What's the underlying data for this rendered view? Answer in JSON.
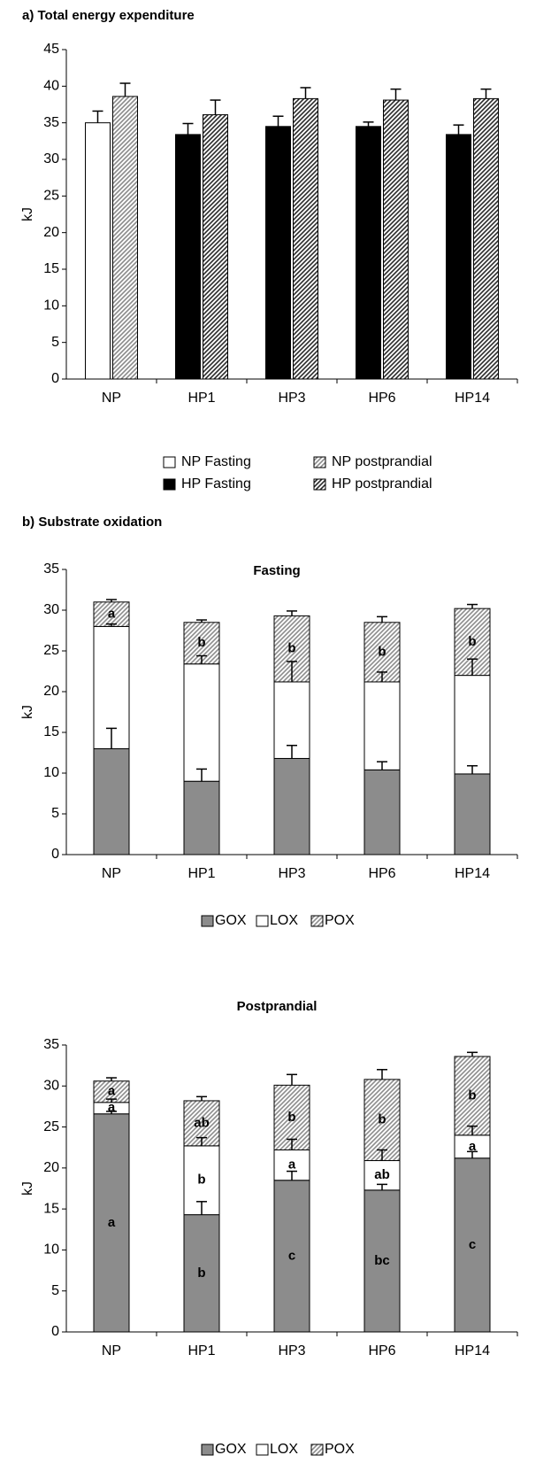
{
  "section_heading": "b) Substrate oxidation",
  "chart_data": [
    {
      "type": "bar",
      "title": "a) Total energy expenditure",
      "y_label": "kJ",
      "categories": [
        "NP",
        "HP1",
        "HP3",
        "HP6",
        "HP14"
      ],
      "ylim": [
        0,
        45
      ],
      "yticks": [
        0,
        5,
        10,
        15,
        20,
        25,
        30,
        35,
        40,
        45
      ],
      "series": [
        {
          "name": "NP Fasting",
          "color": "#ffffff",
          "values": [
            35,
            null,
            null,
            null,
            null
          ],
          "errors": [
            1.6,
            null,
            null,
            null,
            null
          ]
        },
        {
          "name": "NP postprandial",
          "color": "#8a8a8a",
          "pattern": "hatch",
          "values": [
            38.6,
            null,
            null,
            null,
            null
          ],
          "errors": [
            1.8,
            null,
            null,
            null,
            null
          ]
        },
        {
          "name": "HP Fasting",
          "color": "#000000",
          "values": [
            null,
            33.4,
            34.5,
            34.5,
            33.4
          ],
          "errors": [
            null,
            1.5,
            1.4,
            0.6,
            1.3
          ]
        },
        {
          "name": "HP postprandial",
          "color": "#2a2a2a",
          "pattern": "hatch",
          "values": [
            null,
            36.1,
            38.3,
            38.1,
            38.3
          ],
          "errors": [
            null,
            2,
            1.5,
            1.5,
            1.3
          ]
        }
      ]
    },
    {
      "type": "stacked_bar",
      "title": "Fasting",
      "y_label": "kJ",
      "categories": [
        "NP",
        "HP1",
        "HP3",
        "HP6",
        "HP14"
      ],
      "ylim": [
        0,
        35
      ],
      "yticks": [
        0,
        5,
        10,
        15,
        20,
        25,
        30,
        35
      ],
      "series": [
        {
          "name": "GOX",
          "color": "#8c8c8c",
          "values": [
            13,
            9,
            11.8,
            10.4,
            9.9
          ],
          "errors": [
            2.5,
            1.5,
            1.6,
            1,
            1
          ]
        },
        {
          "name": "LOX",
          "color": "#ffffff",
          "values": [
            15,
            14.4,
            9.4,
            10.8,
            12.1
          ],
          "errors": [
            0.3,
            1,
            2.5,
            1.2,
            2
          ]
        },
        {
          "name": "POX",
          "color": "#8c8c8c",
          "pattern": "hatch",
          "values": [
            3,
            5.1,
            8.1,
            7.3,
            8.2
          ],
          "errors": [
            0.3,
            0.3,
            0.6,
            0.7,
            0.5
          ],
          "labels": [
            "a",
            "b",
            "b",
            "b",
            "b"
          ]
        }
      ]
    },
    {
      "type": "stacked_bar",
      "title": "Postprandial",
      "y_label": "kJ",
      "categories": [
        "NP",
        "HP1",
        "HP3",
        "HP6",
        "HP14"
      ],
      "ylim": [
        0,
        35
      ],
      "yticks": [
        0,
        5,
        10,
        15,
        20,
        25,
        30,
        35
      ],
      "series": [
        {
          "name": "GOX",
          "color": "#8c8c8c",
          "values": [
            26.6,
            14.3,
            18.5,
            17.3,
            21.2
          ],
          "errors": [
            0.3,
            1.6,
            1.1,
            0.7,
            0.8
          ],
          "labels": [
            "a",
            "b",
            "c",
            "bc",
            "c"
          ]
        },
        {
          "name": "LOX",
          "color": "#ffffff",
          "values": [
            1.4,
            8.4,
            3.7,
            3.6,
            2.8
          ],
          "errors": [
            0.4,
            1,
            1.3,
            1.3,
            1.1
          ],
          "labels": [
            "a",
            "b",
            "a",
            "ab",
            "a"
          ]
        },
        {
          "name": "POX",
          "color": "#8c8c8c",
          "pattern": "hatch",
          "values": [
            2.6,
            5.5,
            7.9,
            9.9,
            9.6
          ],
          "errors": [
            0.4,
            0.5,
            1.3,
            1.2,
            0.5
          ],
          "labels": [
            "a",
            "ab",
            "b",
            "b",
            "b"
          ]
        }
      ]
    }
  ]
}
